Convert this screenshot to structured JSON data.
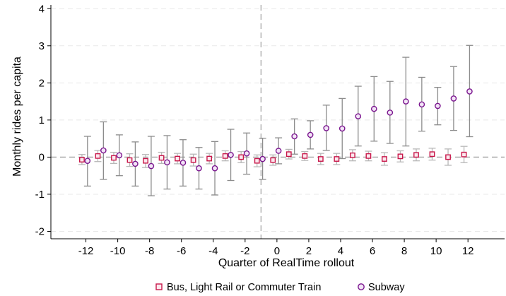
{
  "chart_data": {
    "type": "scatter",
    "x": [
      -12,
      -11,
      -10,
      -9,
      -8,
      -7,
      -6,
      -5,
      -4,
      -3,
      -2,
      -1,
      0,
      1,
      2,
      3,
      4,
      5,
      6,
      7,
      8,
      9,
      10,
      11,
      12
    ],
    "xlabel": "Quarter of RealTime rollout",
    "ylabel": "Monthly rides per capita",
    "xlim": [
      -14.2,
      14.3
    ],
    "ylim": [
      -2.2,
      4.1
    ],
    "x_ticks": [
      -12,
      -10,
      -8,
      -6,
      -4,
      -2,
      0,
      2,
      4,
      6,
      8,
      10,
      12
    ],
    "x_tick_labels": [
      "-12",
      "-10",
      "-8",
      "-6",
      "-4",
      "-2",
      "0",
      "2",
      "4",
      "6",
      "8",
      "10",
      "12"
    ],
    "y_ticks": [
      -2,
      -1,
      0,
      1,
      2,
      3,
      4
    ],
    "y_tick_labels": [
      "-2",
      "-1",
      "0",
      "1",
      "2",
      "3",
      "4"
    ],
    "grid": "horizontal dashed",
    "reference_lines": {
      "y": 0,
      "x": -1
    },
    "legend_position": "bottom",
    "series": [
      {
        "name": "Bus, Light Rail or Commuter Train",
        "marker": "square",
        "color": "#c8174a",
        "ci_color": "#b8b8b8",
        "x_offset": -0.25,
        "values": [
          -0.07,
          0.03,
          -0.02,
          -0.08,
          -0.1,
          -0.02,
          -0.04,
          -0.08,
          -0.04,
          0.03,
          0.0,
          -0.1,
          -0.08,
          0.08,
          0.03,
          -0.05,
          -0.05,
          0.05,
          0.03,
          -0.05,
          0.02,
          0.06,
          0.08,
          0.0,
          0.07
        ],
        "ci_low": [
          -0.2,
          -0.12,
          -0.17,
          -0.25,
          -0.28,
          -0.17,
          -0.18,
          -0.24,
          -0.18,
          -0.1,
          -0.15,
          -0.26,
          -0.22,
          -0.05,
          -0.09,
          -0.2,
          -0.2,
          -0.1,
          -0.1,
          -0.22,
          -0.13,
          -0.1,
          -0.08,
          -0.22,
          -0.15
        ],
        "ci_high": [
          0.07,
          0.18,
          0.13,
          0.09,
          0.07,
          0.13,
          0.1,
          0.08,
          0.1,
          0.17,
          0.15,
          0.06,
          0.06,
          0.21,
          0.15,
          0.1,
          0.1,
          0.2,
          0.16,
          0.12,
          0.17,
          0.22,
          0.24,
          0.22,
          0.29
        ]
      },
      {
        "name": "Subway",
        "marker": "circle",
        "color": "#7b168f",
        "ci_color": "#8c8c8c",
        "x_offset": 0.1,
        "values": [
          -0.1,
          0.18,
          0.05,
          -0.18,
          -0.24,
          -0.14,
          -0.15,
          -0.3,
          -0.3,
          0.06,
          0.1,
          -0.05,
          0.17,
          0.56,
          0.6,
          0.78,
          0.77,
          1.1,
          1.3,
          1.2,
          1.5,
          1.42,
          1.38,
          1.58,
          1.77
        ],
        "ci_low": [
          -0.78,
          -0.6,
          -0.5,
          -0.78,
          -1.04,
          -0.86,
          -0.78,
          -0.86,
          -1.02,
          -0.63,
          -0.46,
          -0.6,
          -0.18,
          0.08,
          0.22,
          0.18,
          -0.04,
          0.3,
          0.43,
          0.37,
          0.3,
          0.7,
          0.87,
          0.72,
          0.55
        ],
        "ci_high": [
          0.56,
          0.95,
          0.6,
          0.41,
          0.56,
          0.58,
          0.47,
          0.26,
          0.42,
          0.75,
          0.65,
          0.51,
          0.52,
          1.03,
          0.98,
          1.4,
          1.58,
          1.91,
          2.17,
          2.04,
          2.69,
          2.15,
          1.88,
          2.44,
          3.01
        ]
      }
    ]
  }
}
